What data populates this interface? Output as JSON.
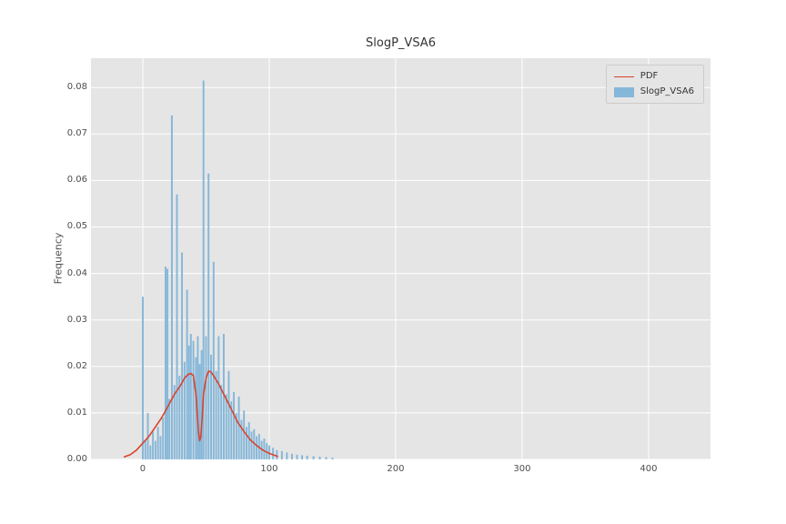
{
  "figure": {
    "title": "SlogP_VSA6",
    "ylabel": "Frequency",
    "plot_bg": "#e5e5e5",
    "grid_color": "#ffffff",
    "tick_color": "#4d4d4d"
  },
  "legend": {
    "entries": [
      {
        "label": "PDF",
        "type": "line",
        "color": "#d9432e"
      },
      {
        "label": "SlogP_VSA6",
        "type": "patch",
        "color": "#85b7d9"
      }
    ]
  },
  "chart_data": {
    "type": "bar",
    "subtype": "histogram-with-pdf-line",
    "title": "SlogP_VSA6",
    "xlabel": "",
    "ylabel": "Frequency",
    "xlim": [
      -41,
      449
    ],
    "ylim": [
      0,
      0.0863
    ],
    "grid": true,
    "legend_position": "upper right",
    "x_ticks": {
      "values": [
        0,
        100,
        200,
        300,
        400
      ],
      "labels": [
        "0",
        "100",
        "200",
        "300",
        "400"
      ]
    },
    "y_ticks": {
      "values": [
        0.0,
        0.01,
        0.02,
        0.03,
        0.04,
        0.05,
        0.06,
        0.07,
        0.08
      ],
      "labels": [
        "0.00",
        "0.01",
        "0.02",
        "0.03",
        "0.04",
        "0.05",
        "0.06",
        "0.07",
        "0.08"
      ]
    },
    "bars": {
      "name": "SlogP_VSA6",
      "color": "#85b7d9",
      "bin_width": 1.4,
      "x": [
        0,
        2,
        4,
        6,
        8,
        10,
        12,
        14,
        16,
        18,
        19.5,
        21,
        23,
        25,
        27,
        29,
        31,
        33,
        35,
        36.5,
        38,
        40,
        42,
        43.5,
        45,
        46.5,
        48,
        50,
        52,
        54,
        56,
        58,
        60,
        62,
        64,
        66,
        68,
        70,
        72,
        74,
        76,
        78,
        80,
        82,
        84,
        86,
        88,
        90,
        92,
        94,
        96,
        98,
        100,
        103,
        106,
        110,
        114,
        118,
        122,
        126,
        130,
        135,
        140,
        145,
        150
      ],
      "heights": [
        0.035,
        0.004,
        0.01,
        0.003,
        0.006,
        0.004,
        0.007,
        0.005,
        0.009,
        0.0415,
        0.041,
        0.013,
        0.074,
        0.016,
        0.057,
        0.018,
        0.0445,
        0.021,
        0.0365,
        0.0245,
        0.027,
        0.0255,
        0.022,
        0.0265,
        0.0205,
        0.0235,
        0.0815,
        0.0265,
        0.0615,
        0.0225,
        0.0425,
        0.019,
        0.0265,
        0.016,
        0.027,
        0.014,
        0.019,
        0.0125,
        0.0145,
        0.01,
        0.0135,
        0.0085,
        0.0105,
        0.007,
        0.008,
        0.006,
        0.0065,
        0.005,
        0.0055,
        0.004,
        0.0045,
        0.0035,
        0.003,
        0.0025,
        0.002,
        0.0018,
        0.0015,
        0.0012,
        0.001,
        0.0009,
        0.0008,
        0.0007,
        0.0006,
        0.0005,
        0.0004
      ]
    },
    "pdf": {
      "name": "PDF",
      "color": "#d9432e",
      "points": [
        [
          -15,
          0.0005
        ],
        [
          -10,
          0.001
        ],
        [
          -5,
          0.002
        ],
        [
          0,
          0.0035
        ],
        [
          5,
          0.005
        ],
        [
          10,
          0.007
        ],
        [
          15,
          0.009
        ],
        [
          20,
          0.0115
        ],
        [
          25,
          0.014
        ],
        [
          30,
          0.016
        ],
        [
          33,
          0.0175
        ],
        [
          36,
          0.0183
        ],
        [
          38,
          0.0185
        ],
        [
          40,
          0.018
        ],
        [
          42,
          0.014
        ],
        [
          44,
          0.006
        ],
        [
          45,
          0.004
        ],
        [
          46,
          0.005
        ],
        [
          47,
          0.009
        ],
        [
          48,
          0.014
        ],
        [
          50,
          0.0175
        ],
        [
          52,
          0.019
        ],
        [
          54,
          0.0188
        ],
        [
          56,
          0.018
        ],
        [
          60,
          0.0162
        ],
        [
          65,
          0.0135
        ],
        [
          70,
          0.0108
        ],
        [
          75,
          0.008
        ],
        [
          80,
          0.006
        ],
        [
          85,
          0.0042
        ],
        [
          90,
          0.003
        ],
        [
          95,
          0.002
        ],
        [
          100,
          0.0013
        ],
        [
          104,
          0.0009
        ],
        [
          107,
          0.0006
        ]
      ]
    }
  }
}
